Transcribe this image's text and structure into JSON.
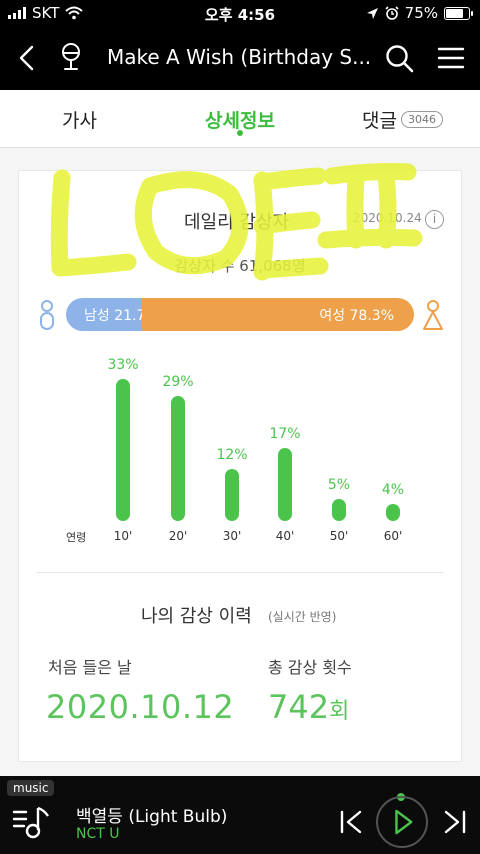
{
  "status_bar": {
    "carrier": "SKT",
    "time": "오후 4:56",
    "battery": "75%"
  },
  "header": {
    "title": "Make A Wish (Birthday S..."
  },
  "tabs": [
    {
      "label": "가사"
    },
    {
      "label": "상세정보"
    },
    {
      "label": "댓글",
      "badge": "3046"
    }
  ],
  "daily": {
    "title": "데일리 감상자",
    "date": "2020.10.24",
    "info_glyph": "i",
    "listeners": "감상자 수 61,068명",
    "male_label": "남성 21.7%",
    "female_label": "여성 78.3%",
    "male_ratio": 0.217,
    "age_axis_label": "연령"
  },
  "chart_data": {
    "type": "bar",
    "categories": [
      "10'",
      "20'",
      "30'",
      "40'",
      "50'",
      "60'"
    ],
    "values": [
      33,
      29,
      12,
      17,
      5,
      4
    ],
    "labels": [
      "33%",
      "29%",
      "12%",
      "17%",
      "5%",
      "4%"
    ],
    "xlabel": "연령",
    "ylim": [
      0,
      33
    ]
  },
  "history": {
    "title": "나의 감상 이력",
    "subtitle": "(실시간 반영)",
    "first_label": "처음 들은 날",
    "first_value": "2020.10.12",
    "count_label": "총 감상 횟수",
    "count_value": "742",
    "count_unit": "회"
  },
  "player": {
    "tag": "music",
    "song": "백열등 (Light Bulb)",
    "artist": "NCT U"
  },
  "colors": {
    "accent": "#4cc44c",
    "male": "#8db3e8",
    "female": "#eea04a",
    "scribble": "#e6f23a"
  }
}
